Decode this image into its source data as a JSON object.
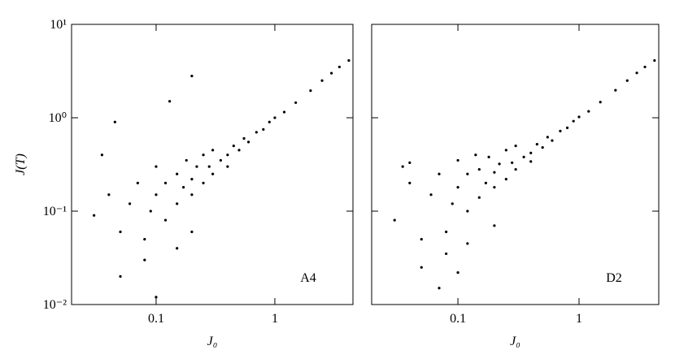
{
  "chart_data": [
    {
      "type": "scatter",
      "panel_label": "A4",
      "xlabel": "J₀",
      "ylabel": "J(T)",
      "color": "#000000",
      "xscale": "log",
      "yscale": "log",
      "xlim": [
        0.0194,
        4.55
      ],
      "ylim": [
        0.01,
        10
      ],
      "xticks": [
        0.1,
        1
      ],
      "yticks": [
        {
          "value": 0.01,
          "label": "10⁻²"
        },
        {
          "value": 0.1,
          "label": "10⁻¹"
        },
        {
          "value": 1,
          "label": "10⁰"
        },
        {
          "value": 10,
          "label": "10¹"
        }
      ],
      "x": [
        0.03,
        0.04,
        0.05,
        0.035,
        0.06,
        0.07,
        0.08,
        0.09,
        0.1,
        0.1,
        0.12,
        0.12,
        0.13,
        0.15,
        0.15,
        0.17,
        0.18,
        0.2,
        0.2,
        0.22,
        0.25,
        0.25,
        0.28,
        0.3,
        0.3,
        0.35,
        0.4,
        0.4,
        0.45,
        0.5,
        0.55,
        0.6,
        0.7,
        0.8,
        0.9,
        1,
        1.2,
        1.5,
        2,
        2.5,
        3,
        3.5,
        4.2,
        0.05,
        0.08,
        0.15,
        0.2,
        0.045,
        0.2,
        0.1
      ],
      "y": [
        0.09,
        0.15,
        0.06,
        0.4,
        0.12,
        0.2,
        0.05,
        0.1,
        0.15,
        0.3,
        0.08,
        0.2,
        1.5,
        0.12,
        0.25,
        0.18,
        0.35,
        0.15,
        0.22,
        0.3,
        0.2,
        0.4,
        0.3,
        0.25,
        0.45,
        0.35,
        0.4,
        0.3,
        0.5,
        0.45,
        0.6,
        0.55,
        0.7,
        0.75,
        0.9,
        1,
        1.15,
        1.45,
        1.95,
        2.5,
        3,
        3.5,
        4.1,
        0.02,
        0.03,
        0.04,
        0.06,
        0.9,
        2.8,
        0.012
      ]
    },
    {
      "type": "scatter",
      "panel_label": "D2",
      "xlabel": "J₀",
      "color": "#000000",
      "xscale": "log",
      "yscale": "log",
      "xlim": [
        0.0194,
        4.55
      ],
      "ylim": [
        0.01,
        10
      ],
      "xticks": [
        0.1,
        1
      ],
      "yticks": [
        0.01,
        0.1,
        1,
        10
      ],
      "x": [
        0.03,
        0.04,
        0.05,
        0.035,
        0.06,
        0.07,
        0.08,
        0.09,
        0.1,
        0.1,
        0.12,
        0.12,
        0.14,
        0.15,
        0.15,
        0.17,
        0.18,
        0.2,
        0.2,
        0.22,
        0.25,
        0.25,
        0.28,
        0.3,
        0.3,
        0.35,
        0.4,
        0.4,
        0.45,
        0.5,
        0.55,
        0.6,
        0.7,
        0.8,
        0.9,
        1,
        1.2,
        1.5,
        2,
        2.5,
        3,
        3.5,
        4.2,
        0.05,
        0.08,
        0.12,
        0.2,
        0.04,
        0.1,
        0.07
      ],
      "y": [
        0.08,
        0.2,
        0.05,
        0.3,
        0.15,
        0.25,
        0.06,
        0.12,
        0.18,
        0.35,
        0.1,
        0.25,
        0.4,
        0.14,
        0.28,
        0.2,
        0.38,
        0.18,
        0.26,
        0.32,
        0.22,
        0.45,
        0.33,
        0.28,
        0.5,
        0.38,
        0.42,
        0.34,
        0.52,
        0.48,
        0.62,
        0.57,
        0.72,
        0.78,
        0.92,
        1.02,
        1.17,
        1.47,
        1.97,
        2.5,
        3.02,
        3.5,
        4.1,
        0.025,
        0.035,
        0.045,
        0.07,
        0.33,
        0.022,
        0.015
      ]
    }
  ]
}
